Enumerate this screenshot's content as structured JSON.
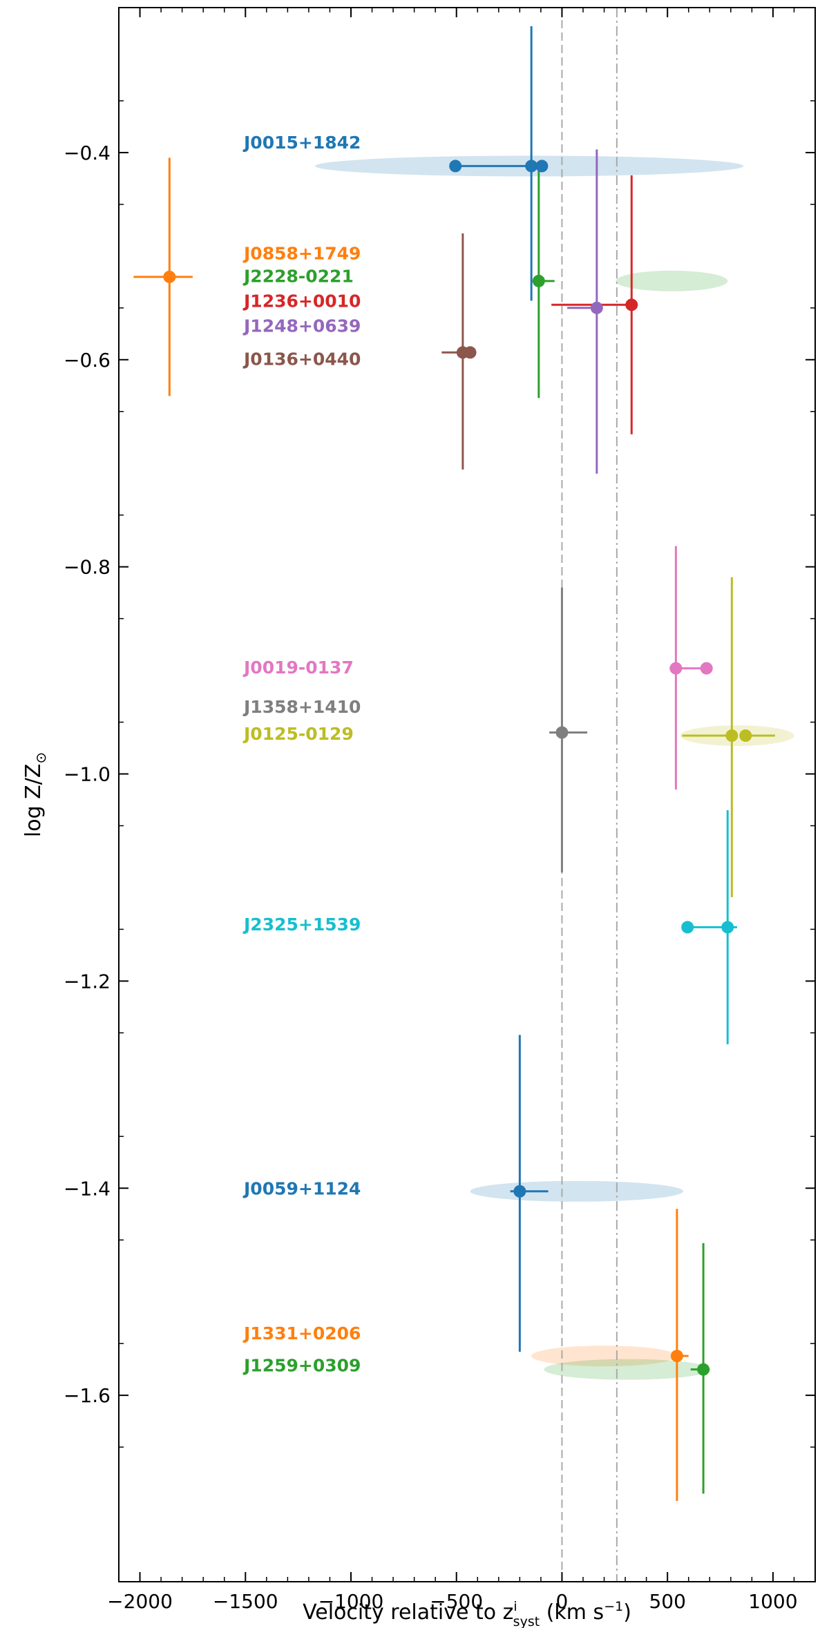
{
  "chart_data": {
    "type": "scatter",
    "xlabel_main": "Velocity relative to z",
    "xlabel_sup": "i",
    "xlabel_sub": "syst",
    "xlabel_unit_pre": " (km s",
    "xlabel_unit_sup": "−1",
    "xlabel_unit_post": ")",
    "ylabel": "log Z/Z",
    "ylabel_sub": "⊙",
    "xlim": [
      -2100,
      1200
    ],
    "ylim": [
      -1.78,
      -0.26
    ],
    "xticks": [
      {
        "value": -2000,
        "label": "−2000"
      },
      {
        "value": -1500,
        "label": "−1500"
      },
      {
        "value": -1000,
        "label": "−1000"
      },
      {
        "value": -500,
        "label": "−500"
      },
      {
        "value": 0,
        "label": "0"
      },
      {
        "value": 500,
        "label": "500"
      },
      {
        "value": 1000,
        "label": "1000"
      }
    ],
    "yticks": [
      {
        "value": -0.4,
        "label": "−0.4"
      },
      {
        "value": -0.6,
        "label": "−0.6"
      },
      {
        "value": -0.8,
        "label": "−0.8"
      },
      {
        "value": -1.0,
        "label": "−1.0"
      },
      {
        "value": -1.2,
        "label": "−1.2"
      },
      {
        "value": -1.4,
        "label": "−1.4"
      },
      {
        "value": -1.6,
        "label": "−1.6"
      }
    ],
    "reference_lines": [
      {
        "x": 0,
        "style": "dashed",
        "color": "#aaaaaa"
      },
      {
        "x": 260,
        "style": "dashdot",
        "color": "#aaaaaa"
      }
    ],
    "objects": [
      {
        "name": "J0015+1842",
        "color": "#1f77b4",
        "label_y": -0.39,
        "band": {
          "x_center": -155,
          "x_halfwidth": 1015,
          "y": -0.413,
          "y_halfheight": 0.01
        },
        "points": [
          {
            "x": -505,
            "y": -0.413,
            "xerr_lo": 0,
            "xerr_hi": 360,
            "yerr_lo": 0,
            "yerr_hi": 0
          },
          {
            "x": -145,
            "y": -0.413,
            "xerr_lo": 0,
            "xerr_hi": 0,
            "yerr_lo": 0.13,
            "yerr_hi": 0.135
          },
          {
            "x": -95,
            "y": -0.413,
            "xerr_lo": 0,
            "xerr_hi": 0,
            "yerr_lo": 0,
            "yerr_hi": 0
          }
        ]
      },
      {
        "name": "J0858+1749",
        "color": "#ff7f0e",
        "label_y": -0.497,
        "points": [
          {
            "x": -1860,
            "y": -0.52,
            "xerr_lo": 170,
            "xerr_hi": 110,
            "yerr_lo": 0.115,
            "yerr_hi": 0.115
          }
        ]
      },
      {
        "name": "J2228-0221",
        "color": "#2ca02c",
        "label_y": -0.519,
        "band": {
          "x_center": 520,
          "x_halfwidth": 265,
          "y": -0.524,
          "y_halfheight": 0.01
        },
        "points": [
          {
            "x": -110,
            "y": -0.524,
            "xerr_lo": 30,
            "xerr_hi": 75,
            "yerr_lo": 0.113,
            "yerr_hi": 0.11
          }
        ]
      },
      {
        "name": "J1236+0010",
        "color": "#d62728",
        "label_y": -0.543,
        "points": [
          {
            "x": 330,
            "y": -0.547,
            "xerr_lo": 380,
            "xerr_hi": 0,
            "yerr_lo": 0.125,
            "yerr_hi": 0.125
          }
        ]
      },
      {
        "name": "J1248+0639",
        "color": "#9467bd",
        "label_y": -0.567,
        "points": [
          {
            "x": 165,
            "y": -0.55,
            "xerr_lo": 140,
            "xerr_hi": 0,
            "yerr_lo": 0.16,
            "yerr_hi": 0.153
          }
        ]
      },
      {
        "name": "J0136+0440",
        "color": "#8c564b",
        "label_y": -0.599,
        "points": [
          {
            "x": -470,
            "y": -0.593,
            "xerr_lo": 100,
            "xerr_hi": 0,
            "yerr_lo": 0.113,
            "yerr_hi": 0.115
          },
          {
            "x": -435,
            "y": -0.593,
            "xerr_lo": 0,
            "xerr_hi": 0,
            "yerr_lo": 0,
            "yerr_hi": 0
          }
        ]
      },
      {
        "name": "J0019-0137",
        "color": "#e377c2",
        "label_y": -0.897,
        "points": [
          {
            "x": 685,
            "y": -0.898,
            "xerr_lo": 175,
            "xerr_hi": 0,
            "yerr_lo": 0,
            "yerr_hi": 0
          },
          {
            "x": 540,
            "y": -0.898,
            "xerr_lo": 0,
            "xerr_hi": 0,
            "yerr_lo": 0.117,
            "yerr_hi": 0.118
          }
        ]
      },
      {
        "name": "J1358+1410",
        "color": "#7f7f7f",
        "label_y": -0.935,
        "points": [
          {
            "x": 0,
            "y": -0.96,
            "xerr_lo": 60,
            "xerr_hi": 120,
            "yerr_lo": 0.135,
            "yerr_hi": 0.14
          }
        ]
      },
      {
        "name": "J0125-0129",
        "color": "#bcbd22",
        "label_y": -0.961,
        "band": {
          "x_center": 830,
          "x_halfwidth": 270,
          "y": -0.963,
          "y_halfheight": 0.01
        },
        "points": [
          {
            "x": 805,
            "y": -0.963,
            "xerr_lo": 235,
            "xerr_hi": 0,
            "yerr_lo": 0.156,
            "yerr_hi": 0.153
          },
          {
            "x": 870,
            "y": -0.963,
            "xerr_lo": 0,
            "xerr_hi": 140,
            "yerr_lo": 0,
            "yerr_hi": 0
          }
        ]
      },
      {
        "name": "J2325+1539",
        "color": "#17becf",
        "label_y": -1.145,
        "points": [
          {
            "x": 595,
            "y": -1.148,
            "xerr_lo": 0,
            "xerr_hi": 235,
            "yerr_lo": 0,
            "yerr_hi": 0
          },
          {
            "x": 785,
            "y": -1.148,
            "xerr_lo": 0,
            "xerr_hi": 0,
            "yerr_lo": 0.113,
            "yerr_hi": 0.113
          }
        ]
      },
      {
        "name": "J0059+1124",
        "color": "#1f77b4",
        "label_y": -1.4,
        "band": {
          "x_center": 70,
          "x_halfwidth": 505,
          "y": -1.403,
          "y_halfheight": 0.01
        },
        "points": [
          {
            "x": -200,
            "y": -1.403,
            "xerr_lo": 45,
            "xerr_hi": 135,
            "yerr_lo": 0.155,
            "yerr_hi": 0.151
          }
        ]
      },
      {
        "name": "J1331+0206",
        "color": "#ff7f0e",
        "label_y": -1.54,
        "band": {
          "x_center": 200,
          "x_halfwidth": 345,
          "y": -1.562,
          "y_halfheight": 0.01
        },
        "points": [
          {
            "x": 545,
            "y": -1.562,
            "xerr_lo": 0,
            "xerr_hi": 55,
            "yerr_lo": 0.14,
            "yerr_hi": 0.142
          }
        ]
      },
      {
        "name": "J1259+0309",
        "color": "#2ca02c",
        "label_y": -1.571,
        "band": {
          "x_center": 310,
          "x_halfwidth": 395,
          "y": -1.575,
          "y_halfheight": 0.01
        },
        "points": [
          {
            "x": 670,
            "y": -1.575,
            "xerr_lo": 60,
            "xerr_hi": 0,
            "yerr_lo": 0.12,
            "yerr_hi": 0.122
          }
        ]
      }
    ]
  }
}
